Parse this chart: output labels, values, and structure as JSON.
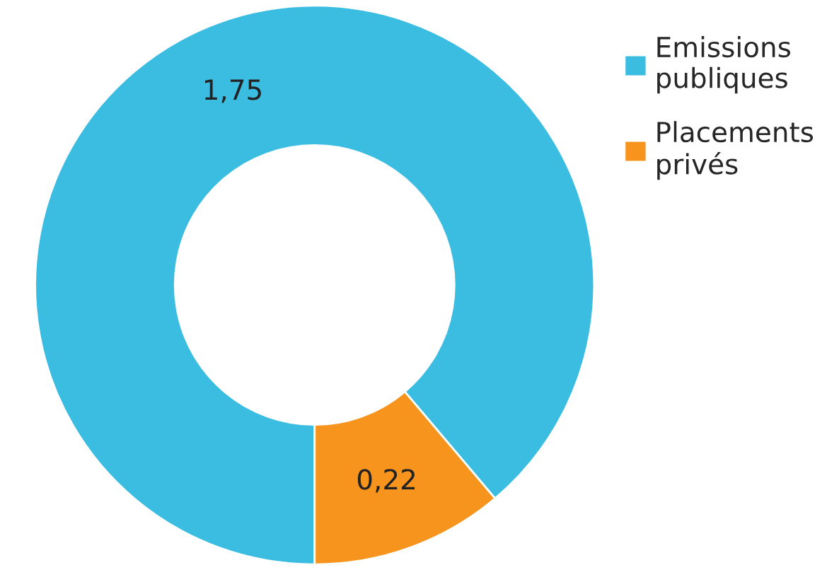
{
  "chart_data": {
    "type": "donut",
    "categories": [
      "Emissions publiques",
      "Placements privés"
    ],
    "values": [
      1.75,
      0.22
    ],
    "value_labels": [
      "1,75",
      "0,22"
    ],
    "colors": [
      "#3bbde2",
      "#f7941d"
    ],
    "legend": "top right"
  }
}
